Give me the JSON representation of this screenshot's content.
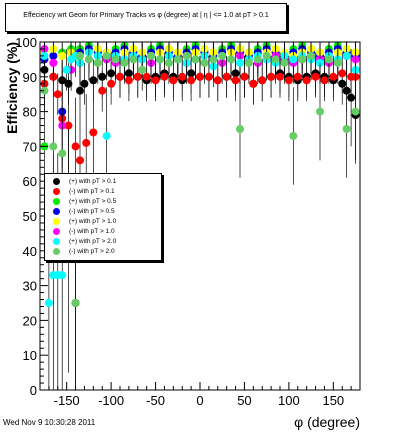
{
  "chart_data": {
    "type": "scatter",
    "title": "Effeciency wrt Geom for Primary Tracks vs φ (degree) at | η | <= 1.0 at pT > 0.1",
    "xlabel": "φ (degree)",
    "ylabel": "Efficiency (%)",
    "xlim": [
      -180,
      180
    ],
    "ylim": [
      0,
      100
    ],
    "xticks": [
      -150,
      -100,
      -50,
      0,
      50,
      100,
      150
    ],
    "yticks": [
      0,
      10,
      20,
      30,
      40,
      50,
      60,
      70,
      80,
      90,
      100
    ],
    "grid": false,
    "legend_position": "left-middle",
    "series": [
      {
        "name": "(+) with pT > 0.1",
        "color": "#000000",
        "x": [
          -175,
          -165,
          -155,
          -148,
          -140,
          -135,
          -130,
          -120,
          -110,
          -100,
          -90,
          -80,
          -70,
          -60,
          -50,
          -40,
          -30,
          -20,
          -10,
          0,
          10,
          20,
          30,
          40,
          50,
          60,
          70,
          80,
          90,
          100,
          110,
          120,
          130,
          140,
          150,
          160,
          165,
          170,
          175
        ],
        "y": [
          92,
          90,
          89,
          88,
          25,
          86,
          88,
          89,
          90,
          91,
          90,
          91,
          90,
          89,
          90,
          91,
          90,
          89,
          91,
          90,
          90,
          89,
          90,
          91,
          90,
          88,
          89,
          90,
          91,
          90,
          89,
          90,
          91,
          90,
          89,
          88,
          86,
          84,
          79
        ]
      },
      {
        "name": "(-) with pT > 0.1",
        "color": "#ff0000",
        "x": [
          -175,
          -165,
          -160,
          -155,
          -148,
          -140,
          -135,
          -128,
          -120,
          -110,
          -100,
          -90,
          -80,
          -70,
          -60,
          -50,
          -40,
          -30,
          -20,
          -10,
          0,
          10,
          20,
          30,
          40,
          50,
          60,
          70,
          80,
          90,
          100,
          110,
          120,
          130,
          140,
          150,
          160,
          170,
          175
        ],
        "y": [
          88,
          90,
          85,
          78,
          76,
          70,
          66,
          71,
          74,
          86,
          88,
          90,
          89,
          90,
          90,
          89,
          90,
          89,
          90,
          89,
          90,
          90,
          89,
          90,
          89,
          90,
          88,
          89,
          90,
          90,
          89,
          90,
          89,
          90,
          89,
          90,
          91,
          90,
          90
        ]
      },
      {
        "name": "(+) with pT > 0.5",
        "color": "#00ee00",
        "x": [
          -175,
          -165,
          -155,
          -145,
          -135,
          -125,
          -115,
          -105,
          -95,
          -85,
          -75,
          -65,
          -55,
          -45,
          -35,
          -25,
          -15,
          -5,
          5,
          15,
          25,
          35,
          45,
          55,
          65,
          75,
          85,
          95,
          105,
          115,
          125,
          135,
          145,
          155,
          165,
          175
        ],
        "y": [
          70,
          96,
          97,
          98,
          98,
          99,
          98,
          97,
          98,
          99,
          98,
          97,
          98,
          99,
          98,
          97,
          98,
          99,
          98,
          97,
          98,
          99,
          98,
          97,
          98,
          99,
          98,
          97,
          98,
          99,
          98,
          97,
          98,
          99,
          98,
          97
        ]
      },
      {
        "name": "(-) with pT > 0.5",
        "color": "#0000ee",
        "x": [
          -175,
          -165,
          -155,
          -145,
          -135,
          -125,
          -115,
          -105,
          -95,
          -85,
          -75,
          -65,
          -55,
          -45,
          -35,
          -25,
          -15,
          -5,
          5,
          15,
          25,
          35,
          45,
          55,
          65,
          75,
          85,
          95,
          105,
          115,
          125,
          135,
          145,
          155,
          165,
          175
        ],
        "y": [
          95,
          96,
          80,
          97,
          97,
          98,
          97,
          96,
          97,
          98,
          97,
          96,
          97,
          98,
          97,
          96,
          97,
          98,
          97,
          96,
          97,
          98,
          97,
          96,
          97,
          98,
          97,
          96,
          97,
          98,
          97,
          96,
          97,
          98,
          97,
          96
        ]
      },
      {
        "name": "(+) with pT > 1.0",
        "color": "#ffff00",
        "x": [
          -175,
          -165,
          -155,
          -145,
          -135,
          -125,
          -115,
          -105,
          -95,
          -85,
          -75,
          -65,
          -55,
          -45,
          -35,
          -25,
          -15,
          -5,
          5,
          15,
          25,
          35,
          45,
          55,
          65,
          75,
          85,
          95,
          105,
          115,
          125,
          135,
          145,
          155,
          165,
          175
        ],
        "y": [
          97,
          98,
          96,
          97,
          95,
          97,
          98,
          97,
          96,
          97,
          98,
          97,
          96,
          97,
          98,
          97,
          96,
          97,
          98,
          97,
          96,
          97,
          98,
          97,
          96,
          97,
          98,
          97,
          96,
          97,
          98,
          97,
          96,
          97,
          98,
          97
        ]
      },
      {
        "name": "(-) with pT > 1.0",
        "color": "#ff00ff",
        "x": [
          -175,
          -165,
          -155,
          -145,
          -135,
          -125,
          -115,
          -105,
          -95,
          -85,
          -75,
          -65,
          -55,
          -45,
          -35,
          -25,
          -15,
          -5,
          5,
          15,
          25,
          35,
          45,
          55,
          65,
          75,
          85,
          95,
          105,
          115,
          125,
          135,
          145,
          155,
          165,
          175
        ],
        "y": [
          98,
          94,
          76,
          92,
          94,
          95,
          96,
          95,
          94,
          95,
          96,
          95,
          94,
          95,
          96,
          95,
          94,
          95,
          96,
          95,
          94,
          95,
          96,
          95,
          94,
          95,
          96,
          95,
          94,
          95,
          96,
          95,
          94,
          95,
          96,
          95
        ]
      },
      {
        "name": "(+) with pT > 2.0",
        "color": "#00ffff",
        "x": [
          -175,
          -170,
          -165,
          -160,
          -155,
          -150,
          -145,
          -140,
          -135,
          -125,
          -115,
          -105,
          -95,
          -85,
          -75,
          -65,
          -55,
          -45,
          -35,
          -25,
          -15,
          -5,
          5,
          15,
          25,
          35,
          45,
          55,
          65,
          75,
          85,
          95,
          105,
          115,
          125,
          135,
          145,
          155,
          165,
          175
        ],
        "y": [
          96,
          25,
          33,
          33,
          33,
          92,
          95,
          96,
          94,
          97,
          96,
          73,
          96,
          95,
          96,
          95,
          96,
          95,
          96,
          95,
          94,
          95,
          96,
          93,
          96,
          95,
          94,
          95,
          96,
          95,
          94,
          96,
          95,
          96,
          95,
          94,
          96,
          95,
          96,
          92
        ]
      },
      {
        "name": "(-) with pT > 2.0",
        "color": "#66cc66",
        "x": [
          -175,
          -165,
          -155,
          -148,
          -140,
          -135,
          -125,
          -115,
          -105,
          -95,
          -85,
          -75,
          -65,
          -55,
          -45,
          -35,
          -25,
          -15,
          -5,
          5,
          15,
          25,
          35,
          45,
          55,
          65,
          75,
          85,
          95,
          105,
          115,
          125,
          135,
          145,
          155,
          165,
          175
        ],
        "y": [
          86,
          70,
          68,
          40,
          25,
          96,
          95,
          94,
          96,
          95,
          94,
          95,
          92,
          96,
          95,
          94,
          95,
          96,
          95,
          94,
          95,
          96,
          95,
          75,
          94,
          95,
          96,
          95,
          94,
          73,
          95,
          96,
          80,
          95,
          94,
          75,
          80
        ]
      }
    ]
  },
  "footer": {
    "timestamp": "Wed Nov  9 10:30:28 2011"
  }
}
